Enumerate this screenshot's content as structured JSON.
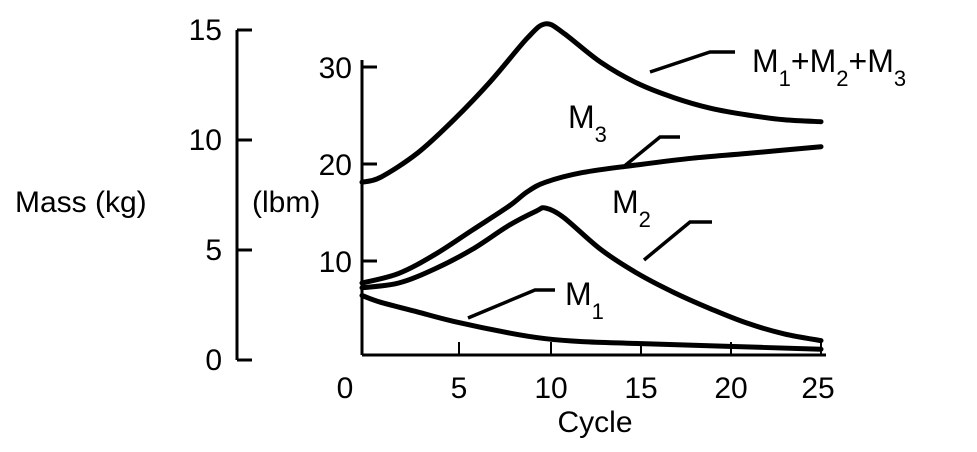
{
  "chart_data": {
    "type": "line",
    "xlabel": "Cycle",
    "x_ticks": [
      "0",
      "5",
      "10",
      "15",
      "20",
      "25"
    ],
    "xlim": [
      0,
      25
    ],
    "y_axes": [
      {
        "label": "Mass (kg)",
        "ticks": [
          "0",
          "5",
          "10",
          "15"
        ],
        "ylim": [
          0,
          15
        ]
      },
      {
        "label": "(lbm)",
        "ticks": [
          "10",
          "20",
          "30"
        ],
        "ylim": [
          0,
          33
        ]
      }
    ],
    "grid": false,
    "legend": "none",
    "series": [
      {
        "name": "M1+M2+M3",
        "label_main": "M",
        "label_subs": [
          "1",
          "2",
          "3"
        ],
        "x": [
          0,
          1,
          3,
          5,
          7,
          9,
          10,
          11,
          13,
          15,
          17,
          19,
          21,
          23,
          25
        ],
        "y": [
          18,
          18.5,
          21,
          24.5,
          28.5,
          33,
          34.5,
          33.5,
          30.5,
          28.3,
          26.8,
          25.7,
          25,
          24.5,
          24.3
        ]
      },
      {
        "name": "M3",
        "label_main": "M",
        "label_subs": [
          "3"
        ],
        "x": [
          0,
          2,
          4,
          6,
          8,
          9,
          10,
          12,
          15,
          18,
          21,
          25
        ],
        "y": [
          7.5,
          8.5,
          10.5,
          13,
          15.5,
          17,
          18,
          19,
          19.8,
          20.5,
          21,
          21.7
        ]
      },
      {
        "name": "M2",
        "label_main": "M",
        "label_subs": [
          "2"
        ],
        "x": [
          0,
          2,
          4,
          6,
          8,
          9.5,
          10,
          11,
          13,
          15,
          17,
          19,
          21,
          23,
          25
        ],
        "y": [
          7,
          7.5,
          9,
          11,
          13.5,
          15,
          15.3,
          14.3,
          11,
          8.5,
          6.5,
          4.8,
          3.3,
          2.2,
          1.5
        ]
      },
      {
        "name": "M1",
        "label_main": "M",
        "label_subs": [
          "1"
        ],
        "x": [
          0,
          1,
          3,
          5,
          8,
          10,
          12,
          15,
          20,
          25
        ],
        "y": [
          6.2,
          5.5,
          4.5,
          3.5,
          2.3,
          1.7,
          1.4,
          1.2,
          0.9,
          0.6
        ]
      }
    ]
  }
}
